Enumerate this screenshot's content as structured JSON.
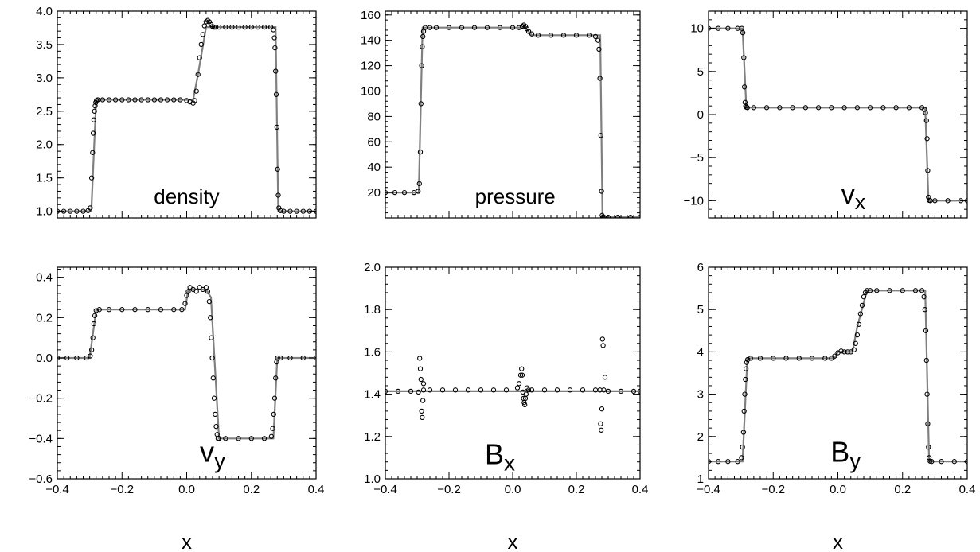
{
  "colors": {
    "axes": "#000000",
    "reference_line": "#808080",
    "markers": "#000000",
    "background": "#ffffff"
  },
  "chart_data": [
    {
      "type": "line",
      "panel": "density",
      "label": "density",
      "xlabel": "",
      "xlim": [
        -0.4,
        0.4
      ],
      "ylim": [
        0.9,
        4.0
      ],
      "yticks": [
        1.0,
        1.5,
        2.0,
        2.5,
        3.0,
        3.5,
        4.0
      ],
      "ytick_labels": [
        "1.0",
        "1.5",
        "2.0",
        "2.5",
        "3.0",
        "3.5",
        "4.0"
      ],
      "xticks": [],
      "series": [
        {
          "style": "line",
          "x": [
            -0.4,
            -0.295,
            -0.28,
            0.02,
            0.035,
            0.06,
            0.275,
            0.283,
            0.4
          ],
          "y": [
            1.0,
            1.0,
            2.67,
            2.67,
            3.05,
            3.76,
            3.76,
            1.0,
            1.0
          ]
        },
        {
          "style": "markers",
          "x": [
            -0.4,
            -0.38,
            -0.36,
            -0.34,
            -0.32,
            -0.305,
            -0.298,
            -0.294,
            -0.291,
            -0.289,
            -0.287,
            -0.285,
            -0.283,
            -0.281,
            -0.279,
            -0.275,
            -0.26,
            -0.24,
            -0.22,
            -0.2,
            -0.18,
            -0.16,
            -0.14,
            -0.12,
            -0.1,
            -0.08,
            -0.06,
            -0.04,
            -0.02,
            0.0,
            0.01,
            0.02,
            0.025,
            0.03,
            0.035,
            0.04,
            0.045,
            0.05,
            0.055,
            0.06,
            0.065,
            0.07,
            0.075,
            0.08,
            0.085,
            0.09,
            0.1,
            0.12,
            0.14,
            0.16,
            0.18,
            0.2,
            0.22,
            0.24,
            0.26,
            0.268,
            0.271,
            0.273,
            0.275,
            0.277,
            0.279,
            0.281,
            0.283,
            0.285,
            0.29,
            0.3,
            0.32,
            0.34,
            0.36,
            0.38,
            0.4
          ],
          "y": [
            1.0,
            1.0,
            1.0,
            1.0,
            1.0,
            1.01,
            1.05,
            1.5,
            1.88,
            2.17,
            2.37,
            2.5,
            2.58,
            2.63,
            2.66,
            2.67,
            2.67,
            2.67,
            2.67,
            2.67,
            2.67,
            2.67,
            2.67,
            2.67,
            2.67,
            2.67,
            2.67,
            2.67,
            2.67,
            2.66,
            2.64,
            2.62,
            2.66,
            2.8,
            3.05,
            3.3,
            3.5,
            3.65,
            3.78,
            3.84,
            3.86,
            3.84,
            3.8,
            3.77,
            3.76,
            3.76,
            3.76,
            3.76,
            3.76,
            3.76,
            3.76,
            3.76,
            3.76,
            3.76,
            3.76,
            3.72,
            3.6,
            3.45,
            3.1,
            2.75,
            2.26,
            1.63,
            1.24,
            1.05,
            1.01,
            1.0,
            1.0,
            1.0,
            1.0,
            1.0,
            1.0
          ]
        }
      ]
    },
    {
      "type": "line",
      "panel": "pressure",
      "label": "pressure",
      "xlabel": "",
      "xlim": [
        -0.4,
        0.4
      ],
      "ylim": [
        0,
        163
      ],
      "yticks": [
        20,
        40,
        60,
        80,
        100,
        120,
        140,
        160
      ],
      "ytick_labels": [
        "20",
        "40",
        "60",
        "80",
        "100",
        "120",
        "140",
        "160"
      ],
      "xticks": [],
      "series": [
        {
          "style": "line",
          "x": [
            -0.4,
            -0.295,
            -0.283,
            0.04,
            0.06,
            0.275,
            0.282,
            0.4
          ],
          "y": [
            20,
            20,
            150,
            150,
            144,
            144,
            0.5,
            0.5
          ]
        },
        {
          "style": "markers",
          "x": [
            -0.4,
            -0.37,
            -0.34,
            -0.31,
            -0.297,
            -0.293,
            -0.29,
            -0.288,
            -0.286,
            -0.284,
            -0.282,
            -0.28,
            -0.275,
            -0.26,
            -0.24,
            -0.2,
            -0.16,
            -0.12,
            -0.08,
            -0.04,
            0.0,
            0.02,
            0.03,
            0.035,
            0.04,
            0.045,
            0.05,
            0.06,
            0.08,
            0.12,
            0.16,
            0.2,
            0.24,
            0.26,
            0.268,
            0.271,
            0.274,
            0.277,
            0.279,
            0.281,
            0.283,
            0.287,
            0.3,
            0.33,
            0.37,
            0.4
          ],
          "y": [
            20,
            20,
            20,
            20,
            21,
            27,
            52,
            90,
            120,
            135,
            143,
            147,
            150,
            150,
            150,
            150,
            150,
            150,
            150,
            150,
            150,
            150,
            151,
            152,
            151,
            149,
            147,
            145,
            144,
            144,
            144,
            144,
            144,
            143,
            140,
            133,
            110,
            65,
            21,
            2,
            0.5,
            0.5,
            0.5,
            0.5,
            0.5,
            0.5
          ]
        }
      ]
    },
    {
      "type": "line",
      "panel": "vx",
      "label": "v_x",
      "xlabel": "",
      "xlim": [
        -0.4,
        0.4
      ],
      "ylim": [
        -12,
        12
      ],
      "yticks": [
        -10,
        -5,
        0,
        5,
        10
      ],
      "ytick_labels": [
        "−10",
        "−5",
        "0",
        "5",
        "10"
      ],
      "xticks": [],
      "series": [
        {
          "style": "line",
          "x": [
            -0.4,
            -0.295,
            -0.283,
            0.27,
            0.28,
            0.4
          ],
          "y": [
            10,
            10,
            0.8,
            0.8,
            -10,
            -10
          ]
        },
        {
          "style": "markers",
          "x": [
            -0.4,
            -0.37,
            -0.34,
            -0.31,
            -0.297,
            -0.294,
            -0.291,
            -0.289,
            -0.287,
            -0.285,
            -0.283,
            -0.28,
            -0.26,
            -0.22,
            -0.18,
            -0.14,
            -0.1,
            -0.06,
            -0.02,
            0.02,
            0.06,
            0.1,
            0.14,
            0.18,
            0.22,
            0.26,
            0.268,
            0.271,
            0.274,
            0.276,
            0.278,
            0.28,
            0.282,
            0.286,
            0.3,
            0.34,
            0.38,
            0.4
          ],
          "y": [
            10,
            10,
            10,
            10,
            10,
            9.5,
            6.6,
            3.2,
            1.4,
            1.0,
            0.85,
            0.8,
            0.8,
            0.8,
            0.8,
            0.8,
            0.8,
            0.8,
            0.8,
            0.8,
            0.8,
            0.8,
            0.8,
            0.8,
            0.8,
            0.8,
            0.6,
            0.2,
            -0.7,
            -2.8,
            -6.5,
            -9.6,
            -9.95,
            -10,
            -10,
            -10,
            -10,
            -10
          ]
        }
      ]
    },
    {
      "type": "line",
      "panel": "vy",
      "label": "v_y",
      "xlabel": "x",
      "xlim": [
        -0.4,
        0.4
      ],
      "ylim": [
        -0.6,
        0.45
      ],
      "yticks": [
        -0.6,
        -0.4,
        -0.2,
        0.0,
        0.2,
        0.4
      ],
      "ytick_labels": [
        "−0.6",
        "−0.4",
        "−0.2",
        "0.0",
        "0.2",
        "0.4"
      ],
      "xticks": [
        -0.4,
        -0.2,
        0.0,
        0.2,
        0.4
      ],
      "xtick_labels": [
        "−0.4",
        "−0.2",
        "0.0",
        "0.2",
        "0.4"
      ],
      "series": [
        {
          "style": "line",
          "x": [
            -0.4,
            -0.3,
            -0.28,
            -0.005,
            0.005,
            0.06,
            0.075,
            0.1,
            0.268,
            0.28,
            0.4
          ],
          "y": [
            0.0,
            0.0,
            0.24,
            0.24,
            0.34,
            0.34,
            0.3,
            -0.4,
            -0.4,
            0.0,
            0.0
          ]
        },
        {
          "style": "markers",
          "x": [
            -0.4,
            -0.37,
            -0.34,
            -0.31,
            -0.298,
            -0.294,
            -0.29,
            -0.287,
            -0.284,
            -0.28,
            -0.27,
            -0.24,
            -0.2,
            -0.16,
            -0.12,
            -0.08,
            -0.04,
            -0.015,
            -0.005,
            0.0,
            0.005,
            0.01,
            0.02,
            0.03,
            0.04,
            0.05,
            0.06,
            0.065,
            0.07,
            0.073,
            0.076,
            0.079,
            0.082,
            0.085,
            0.088,
            0.091,
            0.094,
            0.097,
            0.1,
            0.12,
            0.16,
            0.2,
            0.24,
            0.262,
            0.266,
            0.269,
            0.272,
            0.275,
            0.278,
            0.281,
            0.29,
            0.32,
            0.36,
            0.4
          ],
          "y": [
            0.0,
            0.0,
            0.0,
            0.0,
            0.01,
            0.04,
            0.1,
            0.17,
            0.21,
            0.235,
            0.24,
            0.24,
            0.24,
            0.24,
            0.24,
            0.24,
            0.24,
            0.24,
            0.27,
            0.31,
            0.33,
            0.35,
            0.34,
            0.33,
            0.35,
            0.34,
            0.35,
            0.33,
            0.28,
            0.2,
            0.1,
            0.0,
            -0.1,
            -0.2,
            -0.28,
            -0.34,
            -0.38,
            -0.4,
            -0.4,
            -0.4,
            -0.4,
            -0.4,
            -0.4,
            -0.39,
            -0.35,
            -0.28,
            -0.2,
            -0.1,
            -0.02,
            0.0,
            0.0,
            0.0,
            0.0,
            0.0
          ]
        }
      ]
    },
    {
      "type": "line",
      "panel": "Bx",
      "label": "B_x",
      "xlabel": "x",
      "xlim": [
        -0.4,
        0.4
      ],
      "ylim": [
        1.0,
        2.0
      ],
      "yticks": [
        1.0,
        1.2,
        1.4,
        1.6,
        1.8,
        2.0
      ],
      "ytick_labels": [
        "1.0",
        "1.2",
        "1.4",
        "1.6",
        "1.8",
        "2.0"
      ],
      "xticks": [
        -0.4,
        -0.2,
        0.0,
        0.2,
        0.4
      ],
      "xtick_labels": [
        "−0.4",
        "−0.2",
        "0.0",
        "0.2",
        "0.4"
      ],
      "series": [
        {
          "style": "line",
          "x": [
            -0.4,
            0.4
          ],
          "y": [
            1.414,
            1.414
          ]
        },
        {
          "style": "markers",
          "x": [
            -0.4,
            -0.36,
            -0.32,
            -0.296,
            -0.292,
            -0.29,
            -0.288,
            -0.286,
            -0.284,
            -0.282,
            -0.28,
            -0.28,
            -0.26,
            -0.22,
            -0.18,
            -0.14,
            -0.1,
            -0.06,
            -0.02,
            0.015,
            0.02,
            0.025,
            0.028,
            0.03,
            0.032,
            0.034,
            0.036,
            0.038,
            0.04,
            0.042,
            0.045,
            0.05,
            0.06,
            0.1,
            0.14,
            0.18,
            0.22,
            0.26,
            0.274,
            0.276,
            0.278,
            0.28,
            0.282,
            0.284,
            0.286,
            0.29,
            0.3,
            0.34,
            0.38,
            0.4
          ],
          "y": [
            1.414,
            1.414,
            1.414,
            1.41,
            1.57,
            1.52,
            1.47,
            1.32,
            1.29,
            1.37,
            1.45,
            1.42,
            1.42,
            1.42,
            1.42,
            1.42,
            1.42,
            1.42,
            1.42,
            1.43,
            1.45,
            1.49,
            1.52,
            1.49,
            1.41,
            1.38,
            1.36,
            1.35,
            1.38,
            1.4,
            1.43,
            1.42,
            1.42,
            1.42,
            1.42,
            1.42,
            1.42,
            1.42,
            1.42,
            1.26,
            1.23,
            1.33,
            1.66,
            1.63,
            1.42,
            1.48,
            1.414,
            1.414,
            1.414,
            1.414
          ]
        }
      ]
    },
    {
      "type": "line",
      "panel": "By",
      "label": "B_y",
      "xlabel": "x",
      "xlim": [
        -0.4,
        0.4
      ],
      "ylim": [
        1.0,
        6.0
      ],
      "yticks": [
        1,
        2,
        3,
        4,
        5,
        6
      ],
      "ytick_labels": [
        "1",
        "2",
        "3",
        "4",
        "5",
        "6"
      ],
      "xticks": [
        -0.4,
        -0.2,
        0.0,
        0.2,
        0.4
      ],
      "xtick_labels": [
        "−0.4",
        "−0.2",
        "0.0",
        "0.2",
        "0.4"
      ],
      "series": [
        {
          "style": "line",
          "x": [
            -0.4,
            -0.295,
            -0.28,
            -0.01,
            0.0,
            0.045,
            0.06,
            0.09,
            0.27,
            0.282,
            0.4
          ],
          "y": [
            1.41,
            1.41,
            3.85,
            3.85,
            4.0,
            4.0,
            4.6,
            5.45,
            5.45,
            1.41,
            1.41
          ]
        },
        {
          "style": "markers",
          "x": [
            -0.4,
            -0.37,
            -0.34,
            -0.31,
            -0.298,
            -0.295,
            -0.292,
            -0.29,
            -0.288,
            -0.286,
            -0.284,
            -0.282,
            -0.279,
            -0.27,
            -0.24,
            -0.2,
            -0.16,
            -0.12,
            -0.08,
            -0.04,
            -0.02,
            -0.01,
            0.0,
            0.01,
            0.02,
            0.03,
            0.04,
            0.05,
            0.055,
            0.06,
            0.065,
            0.07,
            0.075,
            0.08,
            0.085,
            0.09,
            0.1,
            0.12,
            0.16,
            0.2,
            0.24,
            0.26,
            0.266,
            0.269,
            0.272,
            0.274,
            0.276,
            0.278,
            0.28,
            0.282,
            0.285,
            0.29,
            0.32,
            0.36,
            0.4
          ],
          "y": [
            1.41,
            1.41,
            1.41,
            1.41,
            1.5,
            1.75,
            2.1,
            2.6,
            3.0,
            3.35,
            3.6,
            3.75,
            3.82,
            3.85,
            3.85,
            3.85,
            3.85,
            3.85,
            3.85,
            3.85,
            3.85,
            3.9,
            3.98,
            4.02,
            4.0,
            4.0,
            4.0,
            4.05,
            4.2,
            4.4,
            4.65,
            4.9,
            5.1,
            5.3,
            5.4,
            5.45,
            5.45,
            5.45,
            5.45,
            5.45,
            5.45,
            5.45,
            5.3,
            5.0,
            4.5,
            3.8,
            3.0,
            2.3,
            1.75,
            1.5,
            1.42,
            1.41,
            1.41,
            1.41,
            1.41
          ]
        }
      ]
    }
  ]
}
